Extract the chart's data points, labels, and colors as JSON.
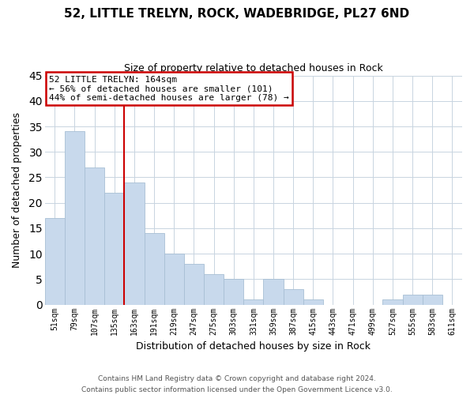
{
  "title": "52, LITTLE TRELYN, ROCK, WADEBRIDGE, PL27 6ND",
  "subtitle": "Size of property relative to detached houses in Rock",
  "xlabel": "Distribution of detached houses by size in Rock",
  "ylabel": "Number of detached properties",
  "footer_lines": [
    "Contains HM Land Registry data © Crown copyright and database right 2024.",
    "Contains public sector information licensed under the Open Government Licence v3.0."
  ],
  "bins": [
    "51sqm",
    "79sqm",
    "107sqm",
    "135sqm",
    "163sqm",
    "191sqm",
    "219sqm",
    "247sqm",
    "275sqm",
    "303sqm",
    "331sqm",
    "359sqm",
    "387sqm",
    "415sqm",
    "443sqm",
    "471sqm",
    "499sqm",
    "527sqm",
    "555sqm",
    "583sqm",
    "611sqm"
  ],
  "values": [
    17,
    34,
    27,
    22,
    24,
    14,
    10,
    8,
    6,
    5,
    1,
    5,
    3,
    1,
    0,
    0,
    0,
    1,
    2,
    2,
    0
  ],
  "bar_color": "#c8d9ec",
  "bar_edge_color": "#a8bfd4",
  "marker_bin_index": 4,
  "marker_color": "#cc0000",
  "annotation_title": "52 LITTLE TRELYN: 164sqm",
  "annotation_line1": "← 56% of detached houses are smaller (101)",
  "annotation_line2": "44% of semi-detached houses are larger (78) →",
  "annotation_box_color": "#cc0000",
  "ylim": [
    0,
    45
  ],
  "yticks": [
    0,
    5,
    10,
    15,
    20,
    25,
    30,
    35,
    40,
    45
  ],
  "background_color": "#ffffff",
  "grid_color": "#c8d4e0"
}
